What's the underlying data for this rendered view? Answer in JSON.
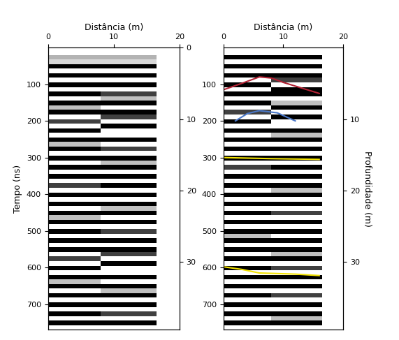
{
  "chart_data": [
    {
      "type": "heatmap",
      "x_label": "Distância (m)",
      "y_label": "Tempo (ns)",
      "xlim": [
        0,
        20
      ],
      "xticks": [
        0,
        10,
        20
      ],
      "ylim": [
        770,
        0
      ],
      "yticks": [
        100,
        200,
        300,
        400,
        500,
        600,
        700
      ],
      "y2lim": [
        39.5,
        0
      ],
      "y2ticks": [
        0,
        10,
        20,
        30
      ],
      "cell_range": [
        -1,
        1
      ],
      "cell_distance": [
        0,
        8,
        16.5
      ],
      "cell_times": [
        20,
        32.5,
        45,
        57.5,
        70,
        82.5,
        95,
        107.5,
        120,
        132.5,
        145,
        157.5,
        170,
        182.5,
        195,
        207.5,
        220,
        232.5,
        245,
        257.5,
        270,
        282.5,
        295,
        307.5,
        320,
        332.5,
        345,
        357.5,
        370,
        382.5,
        395,
        407.5,
        420,
        432.5,
        445,
        457.5,
        470,
        482.5,
        495,
        507.5,
        520,
        532.5,
        545,
        557.5,
        570,
        582.5,
        595,
        607.5,
        620,
        632.5,
        645,
        657.5,
        670,
        682.5,
        695,
        707.5,
        720,
        732.5,
        745,
        757.5,
        770
      ],
      "cells": [
        [
          0.4,
          0.4
        ],
        [
          0.7,
          0.7
        ],
        [
          -1,
          -1
        ],
        [
          1,
          1
        ],
        [
          -1,
          -1
        ],
        [
          1,
          1
        ],
        [
          -1,
          -1
        ],
        [
          1,
          1
        ],
        [
          -1,
          -0.5
        ],
        [
          1,
          0.5
        ],
        [
          -1,
          -1
        ],
        [
          0.5,
          1
        ],
        [
          -1,
          -1
        ],
        [
          1,
          -0.5
        ],
        [
          -0.5,
          1
        ],
        [
          1,
          -1
        ],
        [
          -1,
          1
        ],
        [
          1,
          1
        ],
        [
          -1,
          -1
        ],
        [
          0.5,
          1
        ],
        [
          -1,
          -0.5
        ],
        [
          1,
          1
        ],
        [
          -1,
          -1
        ],
        [
          1,
          0.5
        ],
        [
          -1,
          -1
        ],
        [
          1,
          1
        ],
        [
          -1,
          -1
        ],
        [
          1,
          1
        ],
        [
          -0.5,
          -1
        ],
        [
          1,
          1
        ],
        [
          -1,
          -1
        ],
        [
          1,
          1
        ],
        [
          -1,
          -1
        ],
        [
          1,
          0.5
        ],
        [
          -1,
          -1
        ],
        [
          0.5,
          1
        ],
        [
          -1,
          -1
        ],
        [
          1,
          1
        ],
        [
          -1,
          -0.5
        ],
        [
          1,
          1
        ],
        [
          -1,
          -1
        ],
        [
          1,
          1
        ],
        [
          -1,
          -1
        ],
        [
          1,
          -0.5
        ],
        [
          -0.5,
          1
        ],
        [
          1,
          -1
        ],
        [
          -1,
          1
        ],
        [
          1,
          1
        ],
        [
          -1,
          -1
        ],
        [
          0.5,
          1
        ],
        [
          -1,
          -1
        ],
        [
          1,
          0.5
        ],
        [
          -1,
          -1
        ],
        [
          1,
          1
        ],
        [
          -1,
          -1
        ],
        [
          1,
          1
        ],
        [
          -1,
          -0.5
        ],
        [
          1,
          1
        ],
        [
          -1,
          -1
        ],
        [
          1,
          1
        ]
      ],
      "series": []
    },
    {
      "type": "heatmap",
      "x_label": "Distância (m)",
      "y2_label": "Profundidade (m)",
      "xlim": [
        0,
        20
      ],
      "xticks": [
        0,
        10,
        20
      ],
      "ylim": [
        770,
        0
      ],
      "yticks": [
        100,
        200,
        300,
        400,
        500,
        600,
        700
      ],
      "y2lim": [
        39.5,
        0
      ],
      "y2ticks": [
        10,
        20,
        30
      ],
      "cell_range": [
        -1,
        1
      ],
      "cell_distance": [
        0,
        8,
        16.5
      ],
      "cell_times": [
        20,
        32.5,
        45,
        57.5,
        70,
        82.5,
        95,
        107.5,
        120,
        132.5,
        145,
        157.5,
        170,
        182.5,
        195,
        207.5,
        220,
        232.5,
        245,
        257.5,
        270,
        282.5,
        295,
        307.5,
        320,
        332.5,
        345,
        357.5,
        370,
        382.5,
        395,
        407.5,
        420,
        432.5,
        445,
        457.5,
        470,
        482.5,
        495,
        507.5,
        520,
        532.5,
        545,
        557.5,
        570,
        582.5,
        595,
        607.5,
        620,
        632.5,
        645,
        657.5,
        670,
        682.5,
        695,
        707.5,
        720,
        732.5,
        745,
        757.5,
        770
      ],
      "cells": [
        [
          -1,
          -1
        ],
        [
          1,
          1
        ],
        [
          -1,
          -1
        ],
        [
          1,
          1
        ],
        [
          -1,
          -1
        ],
        [
          1,
          -0.5
        ],
        [
          -1,
          1
        ],
        [
          1,
          -1
        ],
        [
          -1,
          -1
        ],
        [
          1,
          1
        ],
        [
          -1,
          0.5
        ],
        [
          1,
          -1
        ],
        [
          -0.5,
          1
        ],
        [
          1,
          -1
        ],
        [
          -1,
          1
        ],
        [
          1,
          1
        ],
        [
          -1,
          -1
        ],
        [
          1,
          0.5
        ],
        [
          -1,
          -1
        ],
        [
          1,
          1
        ],
        [
          -1,
          -1
        ],
        [
          1,
          1
        ],
        [
          -1,
          -1
        ],
        [
          1,
          1
        ],
        [
          -0.5,
          -1
        ],
        [
          1,
          1
        ],
        [
          -1,
          -1
        ],
        [
          1,
          1
        ],
        [
          -1,
          -1
        ],
        [
          1,
          0.5
        ],
        [
          -1,
          -1
        ],
        [
          1,
          1
        ],
        [
          -1,
          -1
        ],
        [
          1,
          1
        ],
        [
          -1,
          -0.5
        ],
        [
          1,
          1
        ],
        [
          -1,
          -1
        ],
        [
          1,
          1
        ],
        [
          -1,
          -1
        ],
        [
          0.5,
          1
        ],
        [
          -1,
          -1
        ],
        [
          1,
          1
        ],
        [
          -1,
          -1
        ],
        [
          1,
          0.5
        ],
        [
          -1,
          -1
        ],
        [
          1,
          1
        ],
        [
          -1,
          -0.5
        ],
        [
          1,
          1
        ],
        [
          -1,
          -1
        ],
        [
          1,
          1
        ],
        [
          -1,
          -1
        ],
        [
          1,
          1
        ],
        [
          -1,
          -0.5
        ],
        [
          1,
          1
        ],
        [
          -1,
          -1
        ],
        [
          1,
          1
        ],
        [
          -1,
          -1
        ],
        [
          1,
          0.5
        ],
        [
          -1,
          -1
        ],
        [
          1,
          1
        ]
      ],
      "series": [
        {
          "type": "line",
          "color": "#b22234",
          "x": [
            0,
            3,
            6,
            8,
            10,
            13,
            16
          ],
          "values": [
            115,
            98,
            80,
            83,
            95,
            110,
            125
          ]
        },
        {
          "type": "line",
          "color": "#4a78c8",
          "x": [
            2,
            4,
            6,
            9,
            12
          ],
          "values": [
            200,
            180,
            172,
            178,
            200
          ]
        },
        {
          "type": "line",
          "color": "#f2e200",
          "x": [
            0,
            8,
            16
          ],
          "values": [
            300,
            303,
            305
          ]
        },
        {
          "type": "line",
          "color": "#f2e200",
          "x": [
            0,
            3,
            6,
            12,
            16
          ],
          "values": [
            598,
            605,
            615,
            618,
            622
          ]
        }
      ]
    }
  ]
}
